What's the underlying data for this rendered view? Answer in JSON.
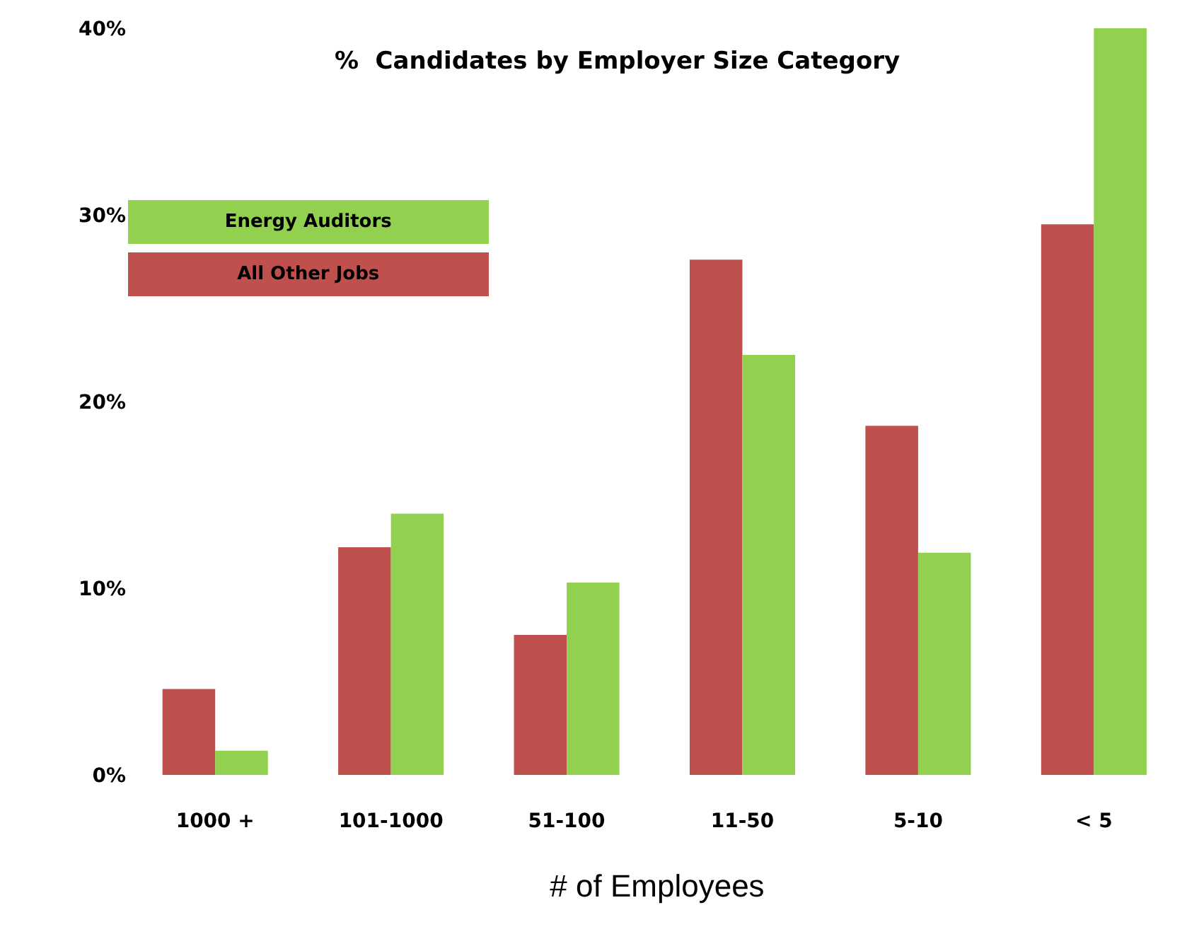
{
  "chart_data": {
    "type": "bar",
    "title": "%  Candidates by Employer Size Category",
    "xlabel": "# of Employees",
    "categories": [
      "1000 +",
      "101-1000",
      "51-100",
      "11-50",
      "5-10",
      "< 5"
    ],
    "series": [
      {
        "name": "All Other Jobs",
        "color": "#c0504d",
        "values": [
          4.6,
          12.2,
          7.5,
          27.6,
          18.7,
          29.5
        ]
      },
      {
        "name": "Energy Auditors",
        "color": "#92d050",
        "values": [
          1.3,
          14.0,
          10.3,
          22.5,
          11.9,
          40.0
        ]
      }
    ],
    "ylim": [
      0,
      40
    ],
    "yticks": [
      {
        "value": 0,
        "label": "0%"
      },
      {
        "value": 10,
        "label": "10%"
      },
      {
        "value": 20,
        "label": "20%"
      },
      {
        "value": 30,
        "label": "30%"
      },
      {
        "value": 40,
        "label": "40%"
      }
    ],
    "legend": "top left"
  }
}
